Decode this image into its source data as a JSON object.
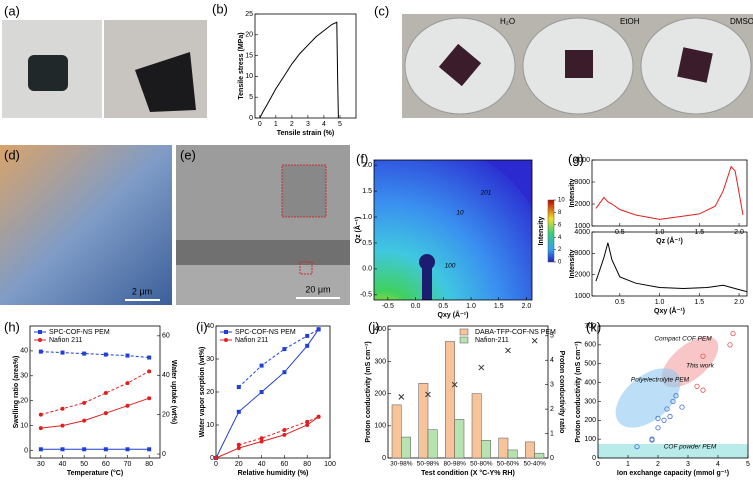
{
  "panel_labels": [
    "(a)",
    "(b)",
    "(c)",
    "(d)",
    "(e)",
    "(f)",
    "(g)",
    "(h)",
    "(i)",
    "(j)",
    "(k)"
  ],
  "photo_texts": {
    "solvents": [
      "H₂O",
      "EtOH",
      "DMSO"
    ],
    "scale_d": "2 μm",
    "scale_e": "20 μm"
  },
  "chart_data": [
    {
      "type": "line",
      "xlabel": "Tensile strain (%)",
      "ylabel": "Tensile stress (MPa)",
      "x": [
        0,
        0.2,
        0.5,
        1,
        1.5,
        2,
        2.5,
        3,
        3.5,
        4,
        4.5,
        4.8,
        4.85,
        4.9
      ],
      "xlim": [
        -0.3,
        6
      ],
      "xticks": [
        0,
        1,
        2,
        3,
        4,
        5
      ],
      "ylim": [
        0,
        25
      ],
      "yticks": [
        0,
        5,
        10,
        15,
        20,
        25
      ],
      "series": [
        {
          "color": "#000000",
          "values": [
            0,
            1.5,
            3.5,
            7,
            10,
            13,
            15.5,
            17.5,
            19.5,
            21,
            22.5,
            23,
            10,
            0
          ]
        }
      ]
    },
    {
      "type": "image",
      "xlabel": "Qxy (Å⁻¹)",
      "ylabel": "Qz (Å⁻¹)",
      "colorbar_label": "Intensity",
      "xlim": [
        -0.75,
        2.1
      ],
      "ylim": [
        -0.6,
        2.1
      ],
      "xticks": [
        -0.5,
        {
          "value": 0,
          "label": "0.0"
        },
        0.5,
        {
          "value": 1,
          "label": "1.0"
        },
        1.5,
        {
          "value": 2,
          "label": "2.0"
        }
      ],
      "yticks": [
        -0.5,
        {
          "value": 0,
          "label": "0.0"
        },
        0.5,
        {
          "value": 1,
          "label": "1.0"
        },
        1.5,
        {
          "value": 2,
          "label": "2.0"
        }
      ],
      "colorbar_lim": [
        0,
        10
      ],
      "colorbar_ticks": [
        0,
        2,
        4,
        6,
        8,
        10
      ],
      "annotations": [
        "201",
        "10",
        "100"
      ]
    },
    {
      "type": "line",
      "xlabel": "Qz (Å⁻¹)",
      "ylabel": "Intensity",
      "x": [
        0.2,
        0.3,
        0.35,
        0.4,
        0.5,
        0.7,
        1.0,
        1.3,
        1.5,
        1.7,
        1.8,
        1.9,
        1.95,
        2.0,
        2.05
      ],
      "xlim": [
        0.15,
        2.1
      ],
      "xticks": [
        0.5,
        {
          "value": 1,
          "label": "1.0"
        },
        1.5,
        {
          "value": 2,
          "label": "2.0"
        }
      ],
      "ylim": [
        1000,
        4000
      ],
      "yticks": [
        1000,
        2000,
        3000,
        4000
      ],
      "series": [
        {
          "color": "#e02020",
          "values": [
            1800,
            2300,
            2100,
            2000,
            1750,
            1500,
            1300,
            1450,
            1550,
            1900,
            2600,
            3700,
            3500,
            2500,
            1500
          ]
        }
      ]
    },
    {
      "type": "line",
      "xlabel": "Qxy (Å⁻¹)",
      "ylabel": "Intensity",
      "x": [
        0.2,
        0.3,
        0.35,
        0.4,
        0.5,
        0.7,
        1.0,
        1.3,
        1.6,
        1.8,
        2.0,
        2.1
      ],
      "xlim": [
        0.15,
        2.1
      ],
      "xticks": [
        0.5,
        {
          "value": 1,
          "label": "1.0"
        },
        1.5,
        {
          "value": 2,
          "label": "2.0"
        }
      ],
      "ylim": [
        1000,
        4000
      ],
      "yticks": [
        1000,
        2000,
        3000,
        4000
      ],
      "series": [
        {
          "color": "#000000",
          "values": [
            1700,
            2800,
            3500,
            2700,
            1900,
            1600,
            1400,
            1350,
            1400,
            1500,
            1300,
            1200
          ]
        }
      ]
    },
    {
      "type": "line",
      "xlabel": "Temperature (°C)",
      "ylabel": "Swelling ratio (area%)",
      "y2label": "Water uptake (wt%)",
      "x": [
        30,
        40,
        50,
        60,
        70,
        80
      ],
      "xlim": [
        25,
        85
      ],
      "xticks": [
        30,
        40,
        50,
        60,
        70,
        80
      ],
      "ylim": [
        -3,
        50
      ],
      "yticks": [
        0,
        10,
        20,
        30,
        40
      ],
      "y2lim": [
        -2,
        65
      ],
      "y2ticks": [
        0,
        20,
        40,
        60
      ],
      "legend": "upper left",
      "series": [
        {
          "name": "SPC-COF-NS PEM",
          "color": "#1f3fd6",
          "marker": "square",
          "values": [
            0.5,
            0.5,
            0.5,
            0.5,
            0.5,
            0.5
          ]
        },
        {
          "name": "Nafion 211",
          "color": "#e02020",
          "marker": "circle",
          "values": [
            9,
            10,
            12,
            15,
            18,
            21
          ]
        },
        {
          "color": "#1f3fd6",
          "marker": "square",
          "dash": true,
          "axis": "y2",
          "values": [
            52,
            51.5,
            51,
            50.5,
            50,
            49
          ]
        },
        {
          "color": "#e02020",
          "marker": "circle",
          "dash": true,
          "axis": "y2",
          "values": [
            20,
            23,
            26,
            31,
            36,
            42
          ]
        }
      ]
    },
    {
      "type": "line",
      "xlabel": "Relative humidity (%)",
      "ylabel": "Water vapor sorption (wt%)",
      "xlim": [
        0,
        100
      ],
      "xticks": [
        0,
        20,
        40,
        60,
        80,
        100
      ],
      "ylim": [
        0,
        40
      ],
      "yticks": [
        0,
        10,
        20,
        30,
        40
      ],
      "legend": "upper left",
      "series": [
        {
          "name": "SPC-COF-NS PEM",
          "color": "#1f3fd6",
          "marker": "square",
          "x": [
            0,
            20,
            40,
            60,
            80,
            90
          ],
          "values": [
            0,
            14,
            20,
            26,
            34,
            39
          ]
        },
        {
          "name": "Nafion 211",
          "color": "#e02020",
          "marker": "circle",
          "x": [
            0,
            20,
            40,
            60,
            80,
            90
          ],
          "values": [
            0,
            3,
            5,
            7,
            10,
            12.5
          ]
        },
        {
          "color": "#1f3fd6",
          "marker": "square",
          "dash": true,
          "x": [
            20,
            40,
            60,
            80,
            90
          ],
          "values": [
            21.5,
            28,
            33,
            37,
            39
          ]
        },
        {
          "color": "#e02020",
          "marker": "circle",
          "dash": true,
          "x": [
            20,
            40,
            60,
            80,
            90
          ],
          "values": [
            4,
            6,
            8.5,
            11,
            12.5
          ]
        }
      ]
    },
    {
      "type": "bar",
      "xlabel": "Test condition (X °C-Y% RH)",
      "ylabel": "Proton conductivity (mS cm⁻¹)",
      "y2label": "Proton conductivity ratio",
      "categories": [
        "30-98%",
        "50-98%",
        "80-98%",
        "50-80%",
        "50-60%",
        "50-40%"
      ],
      "ylim": [
        0,
        410
      ],
      "yticks": [
        0,
        100,
        200,
        300,
        400
      ],
      "y2lim": [
        0,
        5.4
      ],
      "y2ticks": [
        0,
        1,
        2,
        3,
        4,
        5
      ],
      "legend": "upper right",
      "series": [
        {
          "name": "DABA-TFP-COF-NS PEM",
          "color": "#f6c39a",
          "values": [
            165,
            232,
            362,
            200,
            62,
            50
          ]
        },
        {
          "name": "Nafion-211",
          "color": "#b6e3b0",
          "values": [
            65,
            88,
            120,
            55,
            25,
            15
          ]
        },
        {
          "color": "#333333",
          "marker": "x",
          "axis": "y2",
          "values": [
            2.5,
            2.6,
            3.0,
            3.7,
            4.4,
            4.8
          ]
        }
      ]
    },
    {
      "type": "scatter",
      "xlabel": "Ion exchange capacity (mmol g⁻¹)",
      "ylabel": "Proton conductivity (mS cm⁻¹)",
      "xlim": [
        0,
        5
      ],
      "xticks": [
        0,
        1,
        2,
        3,
        4,
        5
      ],
      "ylim": [
        0,
        700
      ],
      "yticks": [
        0,
        100,
        200,
        300,
        400,
        500,
        600,
        700
      ],
      "annotations": [
        "Compact COF PEM",
        "This work",
        "Polyelectrolyte PEM",
        "COF powder PEM"
      ],
      "series": [
        {
          "color": "#3a6fd8",
          "marker": "circle-open",
          "x": [
            1.3,
            1.8,
            1.8,
            2.0,
            2.0,
            2.3,
            2.4,
            2.2,
            2.5,
            2.8,
            2.6
          ],
          "values": [
            60,
            100,
            95,
            210,
            160,
            260,
            220,
            200,
            300,
            270,
            330
          ]
        },
        {
          "color": "#e05050",
          "marker": "circle-open",
          "x": [
            3.3,
            3.5,
            3.5,
            4.5,
            4.4
          ],
          "values": [
            380,
            360,
            540,
            660,
            600
          ]
        }
      ]
    }
  ]
}
